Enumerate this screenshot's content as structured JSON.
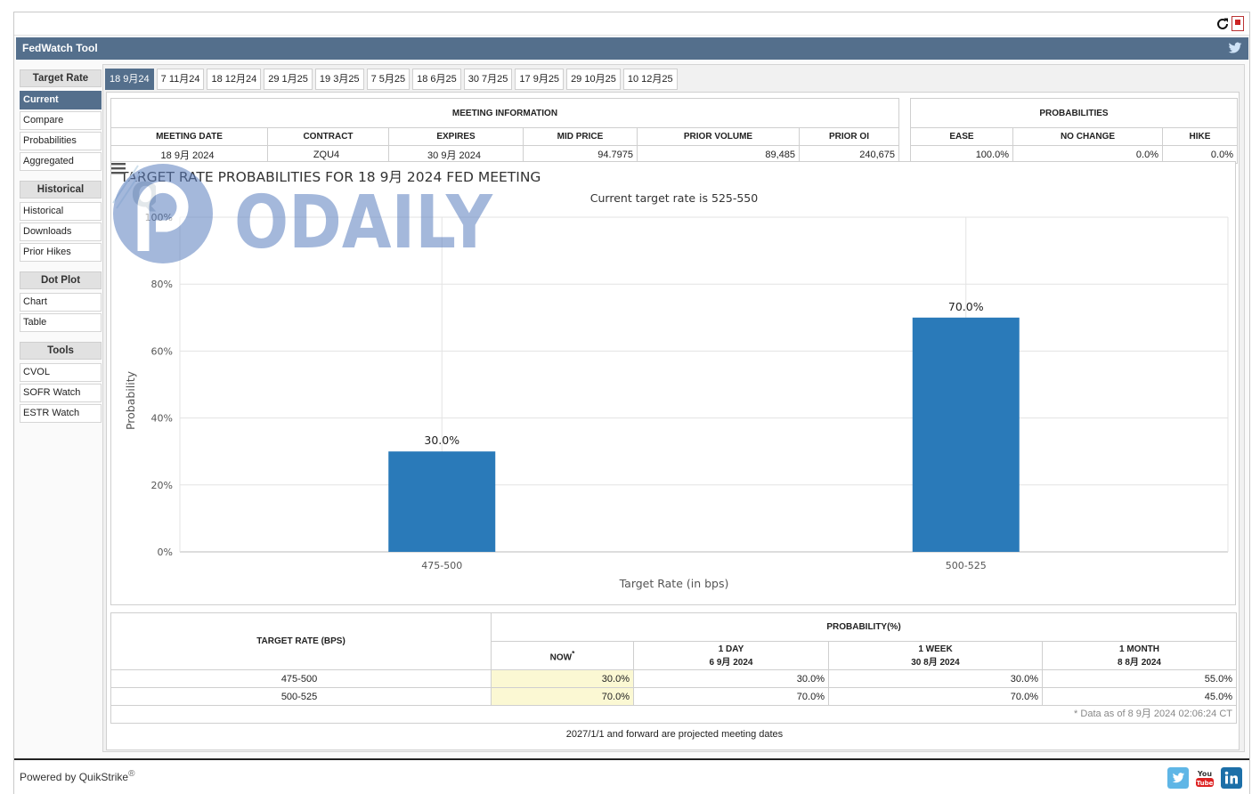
{
  "app": {
    "title": "FedWatch Tool"
  },
  "sidebar": {
    "groups": [
      {
        "header": "Target Rate",
        "items": [
          "Current",
          "Compare",
          "Probabilities",
          "Aggregated"
        ]
      },
      {
        "header": "Historical",
        "items": [
          "Historical",
          "Downloads",
          "Prior Hikes"
        ]
      },
      {
        "header": "Dot Plot",
        "items": [
          "Chart",
          "Table"
        ]
      },
      {
        "header": "Tools",
        "items": [
          "CVOL",
          "SOFR Watch",
          "ESTR Watch"
        ]
      }
    ],
    "active": "Current"
  },
  "tabs": [
    "18 9月24",
    "7 11月24",
    "18 12月24",
    "29 1月25",
    "19 3月25",
    "7 5月25",
    "18 6月25",
    "30 7月25",
    "17 9月25",
    "29 10月25",
    "10 12月25"
  ],
  "active_tab": "18 9月24",
  "meeting_info": {
    "header": "MEETING INFORMATION",
    "columns": [
      "MEETING DATE",
      "CONTRACT",
      "EXPIRES",
      "MID PRICE",
      "PRIOR VOLUME",
      "PRIOR OI"
    ],
    "values": [
      "18 9月 2024",
      "ZQU4",
      "30 9月 2024",
      "94.7975",
      "89,485",
      "240,675"
    ]
  },
  "probabilities": {
    "header": "PROBABILITIES",
    "columns": [
      "EASE",
      "NO CHANGE",
      "HIKE"
    ],
    "values": [
      "100.0%",
      "0.0%",
      "0.0%"
    ]
  },
  "chart": {
    "title": "TARGET RATE PROBABILITIES FOR 18 9月 2024 FED MEETING",
    "subtitle": "Current target rate is 525-550",
    "watermark": "ODAILY",
    "watermark_q": "Q"
  },
  "chart_data": {
    "type": "bar",
    "title": "TARGET RATE PROBABILITIES FOR 18 9月 2024 FED MEETING",
    "subtitle": "Current target rate is 525-550",
    "categories": [
      "475-500",
      "500-525"
    ],
    "values": [
      30.0,
      70.0
    ],
    "data_labels": [
      "30.0%",
      "70.0%"
    ],
    "xlabel": "Target Rate (in bps)",
    "ylabel": "Probability",
    "ylim": [
      0,
      100
    ],
    "yticks": [
      "0%",
      "20%",
      "40%",
      "60%",
      "80%",
      "100%"
    ],
    "grid": true,
    "bar_color": "#2a7ab9"
  },
  "rate_table": {
    "col1": "TARGET RATE (BPS)",
    "prob_header": "PROBABILITY(%)",
    "now": "NOW",
    "now_marker": "*",
    "day": {
      "label": "1 DAY",
      "date": "6 9月 2024"
    },
    "week": {
      "label": "1 WEEK",
      "date": "30 8月 2024"
    },
    "month": {
      "label": "1 MONTH",
      "date": "8 8月 2024"
    },
    "rows": [
      {
        "rate": "475-500",
        "now": "30.0%",
        "day": "30.0%",
        "week": "30.0%",
        "month": "55.0%"
      },
      {
        "rate": "500-525",
        "now": "70.0%",
        "day": "70.0%",
        "week": "70.0%",
        "month": "45.0%"
      }
    ],
    "note": "* Data as of 8 9月 2024 02:06:24 CT"
  },
  "projected_note": "2027/1/1 and forward are projected meeting dates",
  "footer": {
    "powered_by": "Powered by",
    "brand": "QuikStrike",
    "reg": "®"
  },
  "colors": {
    "accent": "#546f8c",
    "bar": "#2a7ab9",
    "highlight": "#fbf8d3"
  }
}
